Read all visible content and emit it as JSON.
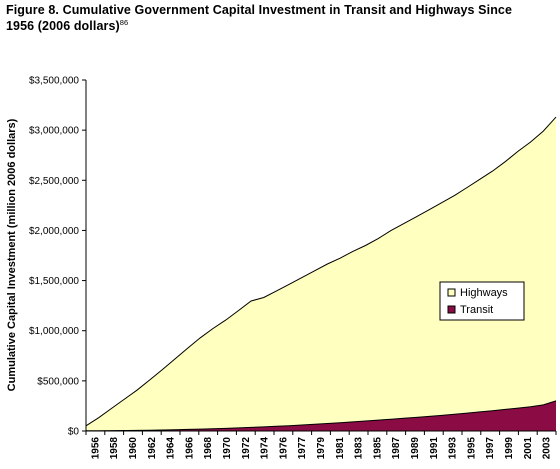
{
  "figure": {
    "title_line1": "Figure 8. Cumulative Government Capital Investment in Transit and Highways Since",
    "title_line2": "1956 (2006 dollars)",
    "footnote": "86"
  },
  "chart_data": {
    "type": "area",
    "stacked": true,
    "title": "",
    "xlabel": "",
    "ylabel": "Cumulative Capital Investment (million 2006 dollars)",
    "ylim": [
      0,
      3500000
    ],
    "yticks": [
      0,
      500000,
      1000000,
      1500000,
      2000000,
      2500000,
      3000000,
      3500000
    ],
    "ytick_labels": [
      "$0",
      "$500,000",
      "$1,000,000",
      "$1,500,000",
      "$2,000,000",
      "$2,500,000",
      "$3,000,000",
      "$3,500,000"
    ],
    "xtick_labels": [
      "1956",
      "1958",
      "1960",
      "1962",
      "1964",
      "1966",
      "1968",
      "1970",
      "1972",
      "1974",
      "1976",
      "1977",
      "1979",
      "1981",
      "1983",
      "1985",
      "1987",
      "1989",
      "1991",
      "1993",
      "1995",
      "1997",
      "1999",
      "2001",
      "2003"
    ],
    "grid": false,
    "legend_position": "center-right",
    "series": [
      {
        "name": "Highways",
        "color": "#ffffc0",
        "values": [
          50000,
          130000,
          220000,
          310000,
          400000,
          500000,
          600000,
          705000,
          810000,
          910000,
          1000000,
          1080000,
          1170000,
          1260000,
          1290000,
          1350000,
          1410000,
          1470000,
          1530000,
          1590000,
          1640000,
          1700000,
          1750000,
          1810000,
          1880000,
          1940000,
          2000000,
          2060000,
          2120000,
          2180000,
          2250000,
          2320000,
          2390000,
          2470000,
          2560000,
          2640000,
          2730000,
          2830000
        ]
      },
      {
        "name": "Transit",
        "color": "#8b0b45",
        "values": [
          2000,
          3000,
          4000,
          5000,
          6000,
          8000,
          10000,
          13000,
          16000,
          19000,
          22000,
          26000,
          31000,
          36000,
          41000,
          47000,
          53000,
          60000,
          67000,
          75000,
          83000,
          91000,
          100000,
          109000,
          118000,
          127000,
          136000,
          146000,
          156000,
          167000,
          178000,
          190000,
          202000,
          215000,
          228000,
          242000,
          260000,
          300000
        ]
      }
    ]
  }
}
